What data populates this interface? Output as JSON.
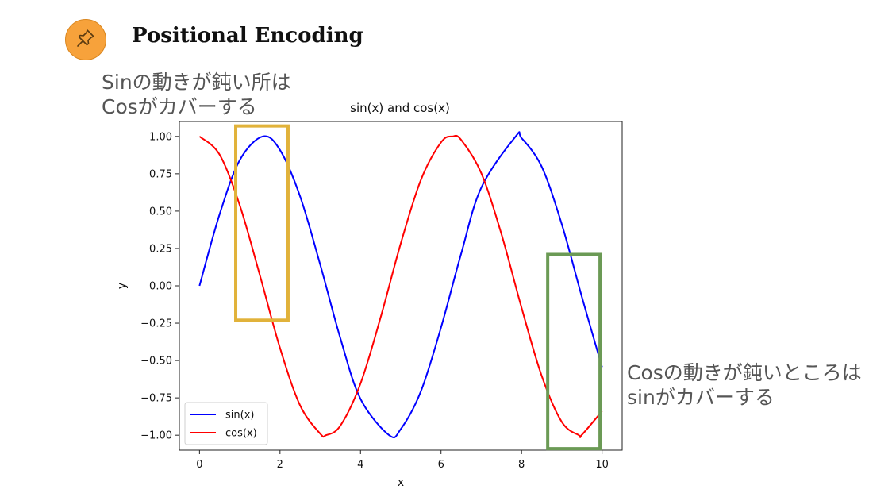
{
  "header": {
    "title": "Positional Encoding",
    "badge_icon": "pushpin-icon",
    "badge_color": "#f7a23b"
  },
  "annotations": {
    "left": {
      "line1": "Sinの動きが鈍い所は",
      "line2": "Cosがカバーする",
      "box_color": "#e1b23a",
      "box_x_range": [
        0.9,
        2.2
      ],
      "box_y_range": [
        -0.23,
        1.07
      ]
    },
    "right": {
      "line1": "Cosの動きが鈍いところは",
      "line2": "sinがカバーする",
      "box_color": "#6b9a55",
      "box_x_range": [
        8.65,
        9.95
      ],
      "box_y_range": [
        -1.09,
        0.21
      ]
    }
  },
  "chart_data": {
    "type": "line",
    "title": "sin(x) and cos(x)",
    "xlabel": "x",
    "ylabel": "y",
    "xlim": [
      -0.5,
      10.5
    ],
    "ylim": [
      -1.1,
      1.1
    ],
    "x_ticks": [
      0,
      2,
      4,
      6,
      8,
      10
    ],
    "x_tick_labels": [
      "0",
      "2",
      "4",
      "6",
      "8",
      "10"
    ],
    "y_ticks": [
      1.0,
      0.75,
      0.5,
      0.25,
      0.0,
      -0.25,
      -0.5,
      -0.75,
      -1.0
    ],
    "y_tick_labels": [
      "1.00",
      "0.75",
      "0.50",
      "0.25",
      "0.00",
      "−0.25",
      "−0.50",
      "−0.75",
      "−1.00"
    ],
    "grid": false,
    "legend_position": "bottom-left",
    "series": [
      {
        "name": "sin(x)",
        "color": "#0000ff",
        "x": [
          0,
          0.5,
          1,
          1.5708,
          2,
          2.5,
          3,
          3.5,
          4,
          4.7124,
          5,
          5.5,
          6,
          6.5,
          7,
          7.854,
          8,
          8.5,
          9,
          9.5,
          10
        ],
        "y": [
          0,
          0.479,
          0.841,
          1.0,
          0.909,
          0.598,
          0.141,
          -0.351,
          -0.757,
          -1.0,
          -0.959,
          -0.706,
          -0.279,
          0.215,
          0.657,
          1.0,
          0.989,
          0.798,
          0.412,
          -0.075,
          -0.544
        ]
      },
      {
        "name": "cos(x)",
        "color": "#ff0000",
        "x": [
          0,
          0.5,
          1,
          1.5,
          2,
          2.5,
          3,
          3.1416,
          3.5,
          4,
          4.5,
          5,
          5.5,
          6,
          6.2832,
          6.5,
          7,
          7.5,
          8,
          8.5,
          9,
          9.4248,
          9.5,
          10
        ],
        "y": [
          1.0,
          0.878,
          0.54,
          0.071,
          -0.416,
          -0.801,
          -0.99,
          -1.0,
          -0.936,
          -0.654,
          -0.211,
          0.284,
          0.709,
          0.96,
          1.0,
          0.977,
          0.754,
          0.347,
          -0.146,
          -0.602,
          -0.911,
          -1.0,
          -0.997,
          -0.839
        ]
      }
    ]
  }
}
